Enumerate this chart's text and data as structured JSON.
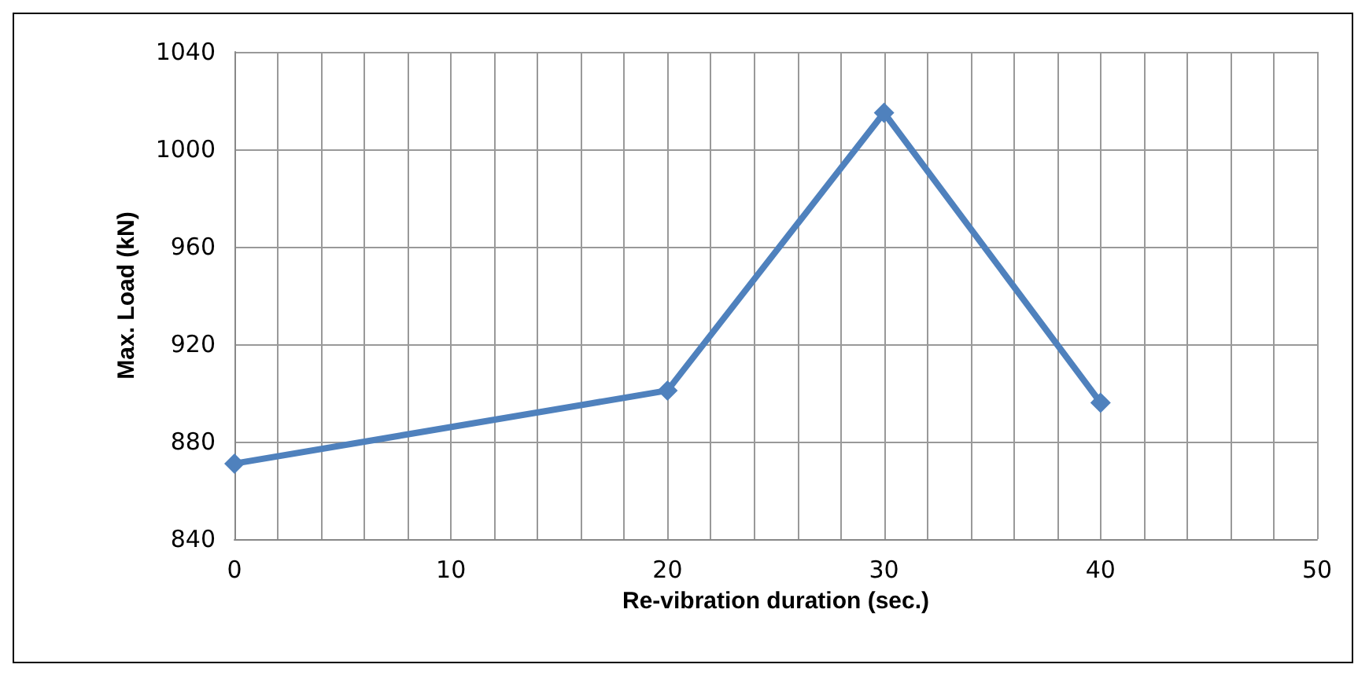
{
  "chart_data": {
    "type": "line",
    "xlabel": "Re-vibration duration (sec.)",
    "ylabel": "Max. Load (kN)",
    "x": [
      0,
      20,
      30,
      40
    ],
    "series": [
      {
        "color": "#4f81bd",
        "values": [
          871,
          901,
          1015,
          896
        ]
      }
    ],
    "xlim": [
      0,
      50
    ],
    "xticks": [
      0,
      {
        "value": 2,
        "label": null
      },
      {
        "value": 4,
        "label": null
      },
      {
        "value": 6,
        "label": null
      },
      {
        "value": 8,
        "label": null
      },
      10,
      {
        "value": 12,
        "label": null
      },
      {
        "value": 14,
        "label": null
      },
      {
        "value": 16,
        "label": null
      },
      {
        "value": 18,
        "label": null
      },
      20,
      {
        "value": 22,
        "label": null
      },
      {
        "value": 24,
        "label": null
      },
      {
        "value": 26,
        "label": null
      },
      {
        "value": 28,
        "label": null
      },
      30,
      {
        "value": 32,
        "label": null
      },
      {
        "value": 34,
        "label": null
      },
      {
        "value": 36,
        "label": null
      },
      {
        "value": 38,
        "label": null
      },
      40,
      {
        "value": 42,
        "label": null
      },
      {
        "value": 44,
        "label": null
      },
      {
        "value": 46,
        "label": null
      },
      {
        "value": 48,
        "label": null
      },
      50
    ],
    "ylim": [
      840,
      1040
    ],
    "yticks": [
      840,
      880,
      920,
      960,
      1000,
      1040
    ],
    "grid": true,
    "marker": "diamond",
    "line_style": "solid"
  }
}
